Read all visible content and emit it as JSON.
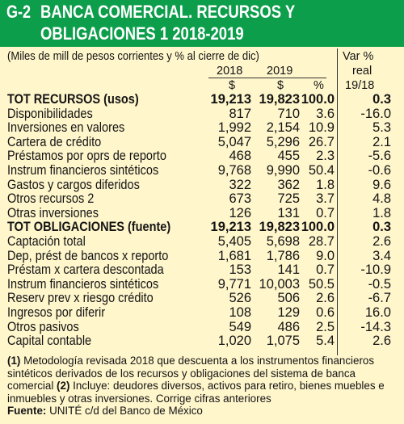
{
  "header": {
    "code": "G-2",
    "title_line1": "BANCA COMERCIAL. RECURSOS Y",
    "title_line2": "OBLIGACIONES 1 2018-2019"
  },
  "units_note": "(Miles de mill de pesos corrientes  y % al cierre de dic)",
  "col_headers": {
    "var_line1": "Var %",
    "var_line2": "real",
    "year_2018": "2018",
    "year_2019": "2019",
    "cur_2018": "$",
    "cur_2019": "$",
    "pct": "%",
    "var_period": "19/18"
  },
  "rows": [
    {
      "label": "TOT RECURSOS (usos)",
      "v2018": "19,213",
      "v2019": "19,823",
      "pct": "100.0",
      "var": "0.3"
    },
    {
      "label": "Disponibilidades",
      "v2018": "817",
      "v2019": "710",
      "pct": "3.6",
      "var": "-16.0"
    },
    {
      "label": "Inversiones en valores",
      "v2018": "1,992",
      "v2019": "2,154",
      "pct": "10.9",
      "var": "5.3"
    },
    {
      "label": "Cartera de crédito",
      "v2018": "5,047",
      "v2019": "5,296",
      "pct": "26.7",
      "var": "2.1"
    },
    {
      "label": "Préstamos por oprs de reporto",
      "v2018": "468",
      "v2019": "455",
      "pct": "2.3",
      "var": "-5.6"
    },
    {
      "label": "Instrum financieros sintéticos",
      "v2018": "9,768",
      "v2019": "9,990",
      "pct": "50.4",
      "var": "-0.6"
    },
    {
      "label": "Gastos y cargos diferidos",
      "v2018": "322",
      "v2019": "362",
      "pct": "1.8",
      "var": "9.6"
    },
    {
      "label": "Otros recursos 2",
      "v2018": "673",
      "v2019": "725",
      "pct": "3.7",
      "var": "4.8"
    },
    {
      "label": "Otras inversiones",
      "v2018": "126",
      "v2019": "131",
      "pct": "0.7",
      "var": "1.8"
    },
    {
      "label": "TOT OBLIGACIONES (fuente)",
      "v2018": "19,213",
      "v2019": "19,823",
      "pct": "100.0",
      "var": "0.3"
    },
    {
      "label": "Captación total",
      "v2018": "5,405",
      "v2019": "5,698",
      "pct": "28.7",
      "var": "2.6"
    },
    {
      "label": "Dep, prést de bancos x reporto",
      "v2018": "1,681",
      "v2019": "1,786",
      "pct": "9.0",
      "var": "3.4"
    },
    {
      "label": "Préstam x cartera descontada",
      "v2018": "153",
      "v2019": "141",
      "pct": "0.7",
      "var": "-10.9"
    },
    {
      "label": "Instrum financieros sintéticos",
      "v2018": "9,771",
      "v2019": "10,003",
      "pct": "50.5",
      "var": "-0.5"
    },
    {
      "label": "Reserv prev x riesgo crédito",
      "v2018": "526",
      "v2019": "506",
      "pct": "2.6",
      "var": "-6.7"
    },
    {
      "label": "Ingresos por diferir",
      "v2018": "108",
      "v2019": "129",
      "pct": "0.6",
      "var": "16.0"
    },
    {
      "label": "Otros pasivos",
      "v2018": "549",
      "v2019": "486",
      "pct": "2.5",
      "var": "-14.3"
    },
    {
      "label": "Capital contable",
      "v2018": "1,020",
      "v2019": "1,075",
      "pct": "5.4",
      "var": "2.6"
    }
  ],
  "notes": {
    "n1_mark": "(1)",
    "n1_text": " Metodología revisada 2018 que descuenta a los instrumentos financieros sintéticos derivados de los recursos y obligaciones del sistema de banca comercial ",
    "n2_mark": "(2)",
    "n2_text": " Incluye: deudores diversos, activos para retiro, bienes muebles e inmuebles y otras inversiones. Corrige cifras anteriores",
    "source_label": "Fuente:",
    "source_text": " UNITÉ c/d del Banco de México"
  },
  "colors": {
    "header_bg": "#0d9e4b",
    "header_text": "#ffffff",
    "page_bg": "#fff6cc"
  }
}
